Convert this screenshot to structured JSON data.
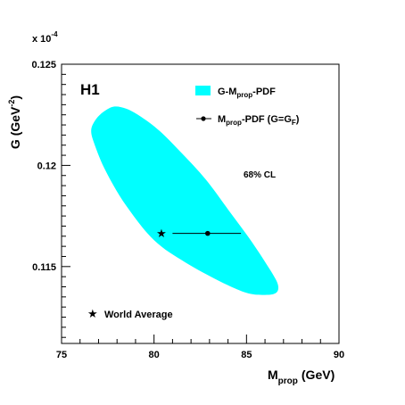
{
  "chart_data": {
    "type": "scatter",
    "xlabel": "M",
    "xlabel_sub": "prop",
    "xlabel_unit": "(GeV)",
    "ylabel": "G (GeV",
    "ylabel_sup": "-2",
    "ylabel_close": ")",
    "y_multiplier": "x 10",
    "y_multiplier_exp": "-4",
    "xlim": [
      75,
      90
    ],
    "ylim": [
      0.1112,
      0.125
    ],
    "x_ticks": [
      "75",
      "80",
      "85",
      "90"
    ],
    "y_ticks": [
      "0.115",
      "0.12",
      "0.125"
    ],
    "experiment_label": "H1",
    "cl_label": "68% CL",
    "legend": [
      {
        "name_main": "G-M",
        "name_sub": "prop",
        "name_rest": "-PDF",
        "color": "#00ffff",
        "marker": "filled-box"
      },
      {
        "name_main": "M",
        "name_sub": "prop",
        "name_rest": "-PDF (G=G",
        "name_sub2": "F",
        "name_end": ")",
        "marker": "point-with-errorbar"
      }
    ],
    "world_average_label": "World Average",
    "contour_color": "#00ffff",
    "contour_path": [
      [
        76.8,
        0.1222
      ],
      [
        77.2,
        0.1226
      ],
      [
        77.8,
        0.1229
      ],
      [
        78.5,
        0.1228
      ],
      [
        79.3,
        0.1224
      ],
      [
        80.3,
        0.1217
      ],
      [
        81.5,
        0.1206
      ],
      [
        82.8,
        0.1193
      ],
      [
        84.1,
        0.1177
      ],
      [
        85.3,
        0.1162
      ],
      [
        86.3,
        0.1148
      ],
      [
        86.7,
        0.1141
      ],
      [
        86.6,
        0.1137
      ],
      [
        86.0,
        0.1136
      ],
      [
        85.0,
        0.1137
      ],
      [
        83.5,
        0.1143
      ],
      [
        81.7,
        0.1152
      ],
      [
        80.0,
        0.1163
      ],
      [
        78.5,
        0.118
      ],
      [
        77.4,
        0.1197
      ],
      [
        76.8,
        0.121
      ],
      [
        76.6,
        0.1217
      ]
    ],
    "series": [
      {
        "name": "M_prop-PDF (G=G_F)",
        "x": 82.9,
        "y": 0.11664,
        "x_err_low": 81.0,
        "x_err_high": 84.7
      },
      {
        "name": "World Average",
        "x": 80.4,
        "y": 0.11664,
        "marker": "star"
      }
    ]
  }
}
